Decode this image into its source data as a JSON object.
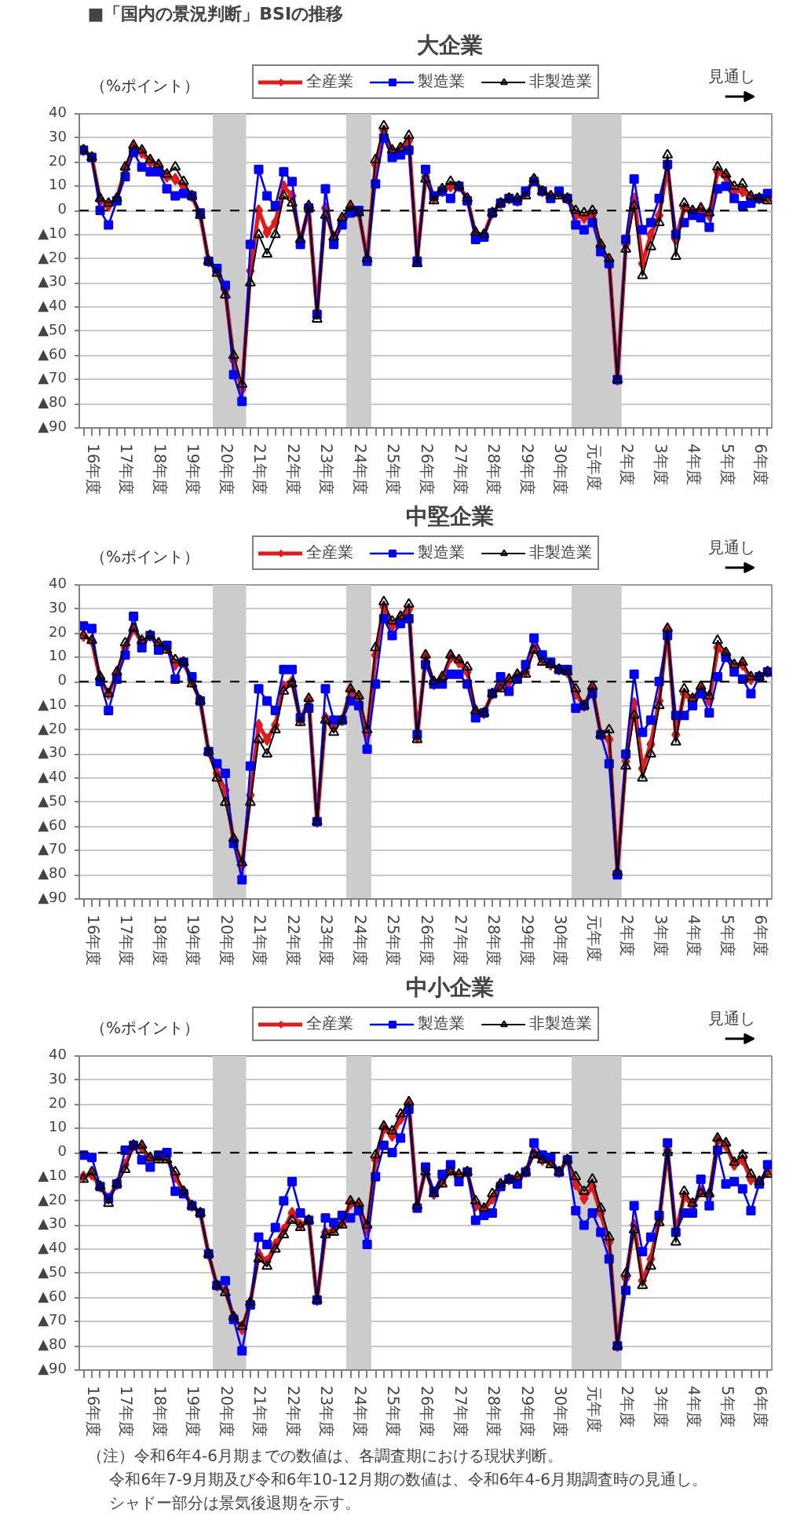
{
  "chart_data": [
    {
      "type": "line",
      "title": "■「国内の景況判断」BSIの推移",
      "subtitle": "大企業",
      "ylabel": "（%ポイント）",
      "categories": [
        null,
        "16年度",
        null,
        null,
        null,
        "17年度",
        null,
        null,
        null,
        "18年度",
        null,
        null,
        null,
        "19年度",
        null,
        null,
        null,
        "20年度",
        null,
        null,
        null,
        "21年度",
        null,
        null,
        null,
        "22年度",
        null,
        null,
        null,
        "23年度",
        null,
        null,
        null,
        "24年度",
        null,
        null,
        null,
        "25年度",
        null,
        null,
        null,
        "26年度",
        null,
        null,
        null,
        "27年度",
        null,
        null,
        null,
        "28年度",
        null,
        null,
        null,
        "29年度",
        null,
        null,
        null,
        "30年度",
        null,
        null,
        null,
        "元年度",
        null,
        null,
        null,
        "2年度",
        null,
        null,
        null,
        "3年度",
        null,
        null,
        null,
        "4年度",
        null,
        null,
        null,
        "5年度",
        null,
        null,
        null,
        "6年度",
        null
      ],
      "ylim": [
        -90,
        40
      ],
      "yticks": [
        40,
        30,
        20,
        10,
        0,
        {
          "value": -10,
          "label": "▲10"
        },
        {
          "value": -20,
          "label": "▲20"
        },
        {
          "value": -30,
          "label": "▲30"
        },
        {
          "value": -40,
          "label": "▲40"
        },
        {
          "value": -50,
          "label": "▲50"
        },
        {
          "value": -60,
          "label": "▲60"
        },
        {
          "value": -70,
          "label": "▲70"
        },
        {
          "value": -80,
          "label": "▲80"
        },
        {
          "value": -90,
          "label": "▲90"
        }
      ],
      "grid": "y",
      "legend": "top",
      "ref_lines": [
        {
          "axis": "y",
          "value": 0,
          "color": "#000000",
          "line_style": "dashed"
        }
      ],
      "annotations": [
        "見通し"
      ],
      "series": [
        {
          "name": "全産業",
          "color": "#e31a1c",
          "marker": "diamond",
          "values": [
            25,
            22,
            4,
            2,
            5,
            17,
            26,
            24,
            20,
            18,
            14,
            13,
            10,
            6,
            -2,
            -21,
            -25,
            -33,
            -62,
            -74,
            -25,
            0,
            -9,
            -5,
            10,
            6,
            -13,
            1,
            -42,
            1,
            -12,
            -4,
            1,
            -1,
            -20,
            19,
            33,
            24,
            25,
            29,
            -20,
            14,
            5,
            8,
            10,
            10,
            5,
            -10,
            -10,
            -1,
            3,
            5,
            4,
            7,
            13,
            8,
            6,
            7,
            5,
            -2,
            -3,
            -2,
            -15,
            -21,
            -70,
            -14,
            5,
            -22,
            -10,
            -2,
            18,
            -12,
            1,
            -1,
            0,
            -2,
            16,
            14,
            8,
            8,
            5,
            5,
            5
          ]
        },
        {
          "name": "製造業",
          "color": "#0000ff",
          "marker": "square",
          "values": [
            25,
            22,
            0,
            -6,
            4,
            14,
            24,
            18,
            16,
            16,
            9,
            6,
            7,
            6,
            -1,
            -21,
            -24,
            -31,
            -68,
            -79,
            -14,
            17,
            6,
            2,
            16,
            12,
            -14,
            1,
            -43,
            9,
            -14,
            -6,
            -1,
            0,
            -21,
            11,
            30,
            22,
            23,
            25,
            -21,
            17,
            6,
            8,
            5,
            10,
            4,
            -12,
            -11,
            -1,
            3,
            5,
            4,
            8,
            12,
            8,
            5,
            8,
            5,
            -6,
            -8,
            -5,
            -17,
            -22,
            -70,
            -12,
            13,
            -8,
            -5,
            5,
            19,
            -10,
            -5,
            -2,
            -3,
            -7,
            9,
            10,
            5,
            2,
            3,
            5,
            7
          ]
        },
        {
          "name": "非製造業",
          "color": "#000000",
          "marker": "triangle",
          "values": [
            25,
            22,
            5,
            3,
            5,
            18,
            27,
            25,
            21,
            19,
            15,
            18,
            12,
            6,
            -2,
            -21,
            -26,
            -35,
            -60,
            -72,
            -30,
            -10,
            -18,
            -10,
            6,
            3,
            -12,
            2,
            -45,
            -2,
            -11,
            -3,
            2,
            -1,
            -20,
            21,
            35,
            25,
            26,
            31,
            -22,
            13,
            4,
            9,
            12,
            10,
            5,
            -9,
            -10,
            -1,
            3,
            5,
            5,
            6,
            13,
            8,
            6,
            6,
            5,
            0,
            -1,
            0,
            -14,
            -20,
            -70,
            -16,
            2,
            -27,
            -15,
            -5,
            23,
            -19,
            3,
            0,
            1,
            -1,
            18,
            15,
            10,
            11,
            6,
            5,
            4
          ]
        }
      ]
    },
    {
      "type": "line",
      "subtitle": "中堅企業",
      "ylabel": "（%ポイント）",
      "categories": [
        null,
        "16年度",
        null,
        null,
        null,
        "17年度",
        null,
        null,
        null,
        "18年度",
        null,
        null,
        null,
        "19年度",
        null,
        null,
        null,
        "20年度",
        null,
        null,
        null,
        "21年度",
        null,
        null,
        null,
        "22年度",
        null,
        null,
        null,
        "23年度",
        null,
        null,
        null,
        "24年度",
        null,
        null,
        null,
        "25年度",
        null,
        null,
        null,
        "26年度",
        null,
        null,
        null,
        "27年度",
        null,
        null,
        null,
        "28年度",
        null,
        null,
        null,
        "29年度",
        null,
        null,
        null,
        "30年度",
        null,
        null,
        null,
        "元年度",
        null,
        null,
        null,
        "2年度",
        null,
        null,
        null,
        "3年度",
        null,
        null,
        null,
        "4年度",
        null,
        null,
        null,
        "5年度",
        null,
        null,
        null,
        "6年度",
        null
      ],
      "ylim": [
        -90,
        40
      ],
      "yticks": [
        40,
        30,
        20,
        10,
        0,
        {
          "value": -10,
          "label": "▲10"
        },
        {
          "value": -20,
          "label": "▲20"
        },
        {
          "value": -30,
          "label": "▲30"
        },
        {
          "value": -40,
          "label": "▲40"
        },
        {
          "value": -50,
          "label": "▲50"
        },
        {
          "value": -60,
          "label": "▲60"
        },
        {
          "value": -70,
          "label": "▲70"
        },
        {
          "value": -80,
          "label": "▲80"
        },
        {
          "value": -90,
          "label": "▲90"
        }
      ],
      "grid": "y",
      "legend": "top",
      "ref_lines": [
        {
          "axis": "y",
          "value": 0,
          "color": "#000000",
          "line_style": "dashed"
        }
      ],
      "annotations": [
        "見通し"
      ],
      "series": [
        {
          "name": "全産業",
          "color": "#e31a1c",
          "marker": "diamond",
          "values": [
            19,
            17,
            1,
            -5,
            3,
            14,
            22,
            16,
            19,
            15,
            14,
            7,
            8,
            0,
            -8,
            -29,
            -38,
            -45,
            -66,
            -76,
            -47,
            -18,
            -24,
            -18,
            -2,
            0,
            -16,
            -8,
            -58,
            -15,
            -19,
            -16,
            -4,
            -7,
            -22,
            11,
            31,
            23,
            26,
            30,
            -23,
            10,
            -1,
            1,
            10,
            8,
            4,
            -13,
            -13,
            -5,
            -2,
            0,
            2,
            4,
            14,
            9,
            7,
            5,
            4,
            -5,
            -10,
            -3,
            -22,
            -24,
            -79,
            -33,
            -9,
            -36,
            -26,
            -8,
            21,
            -22,
            -5,
            -8,
            -3,
            -8,
            14,
            11,
            6,
            7,
            1,
            2,
            4
          ]
        },
        {
          "name": "製造業",
          "color": "#0000ff",
          "marker": "square",
          "values": [
            23,
            22,
            0,
            -12,
            1,
            11,
            27,
            14,
            19,
            13,
            15,
            1,
            8,
            2,
            -8,
            -29,
            -34,
            -38,
            -67,
            -82,
            -35,
            -3,
            -8,
            -12,
            5,
            5,
            -15,
            -11,
            -58,
            -3,
            -16,
            -16,
            -8,
            -10,
            -28,
            -1,
            26,
            19,
            24,
            26,
            -22,
            7,
            -1,
            -1,
            3,
            3,
            -1,
            -15,
            -13,
            -5,
            2,
            -4,
            1,
            7,
            18,
            11,
            8,
            5,
            5,
            -11,
            -10,
            -5,
            -22,
            -34,
            -80,
            -30,
            3,
            -21,
            -16,
            0,
            19,
            -14,
            -14,
            -10,
            -5,
            -13,
            2,
            10,
            4,
            1,
            -5,
            2,
            4
          ]
        },
        {
          "name": "非製造業",
          "color": "#000000",
          "marker": "triangle",
          "values": [
            19,
            17,
            2,
            -5,
            4,
            16,
            22,
            17,
            19,
            16,
            13,
            9,
            8,
            -1,
            -8,
            -29,
            -40,
            -50,
            -65,
            -75,
            -50,
            -24,
            -30,
            -20,
            -4,
            -1,
            -17,
            -7,
            -58,
            -16,
            -21,
            -16,
            -3,
            -6,
            -20,
            14,
            33,
            25,
            27,
            32,
            -24,
            11,
            0,
            2,
            11,
            9,
            6,
            -12,
            -13,
            -5,
            -3,
            1,
            3,
            3,
            13,
            8,
            7,
            5,
            4,
            -3,
            -10,
            -2,
            -22,
            -20,
            -79,
            -35,
            -14,
            -40,
            -30,
            -10,
            22,
            -25,
            -3,
            -7,
            -2,
            -6,
            17,
            12,
            7,
            8,
            2,
            2,
            4
          ]
        }
      ]
    },
    {
      "type": "line",
      "subtitle": "中小企業",
      "ylabel": "（%ポイント）",
      "categories": [
        null,
        "16年度",
        null,
        null,
        null,
        "17年度",
        null,
        null,
        null,
        "18年度",
        null,
        null,
        null,
        "19年度",
        null,
        null,
        null,
        "20年度",
        null,
        null,
        null,
        "21年度",
        null,
        null,
        null,
        "22年度",
        null,
        null,
        null,
        "23年度",
        null,
        null,
        null,
        "24年度",
        null,
        null,
        null,
        "25年度",
        null,
        null,
        null,
        "26年度",
        null,
        null,
        null,
        "27年度",
        null,
        null,
        null,
        "28年度",
        null,
        null,
        null,
        "29年度",
        null,
        null,
        null,
        "30年度",
        null,
        null,
        null,
        "元年度",
        null,
        null,
        null,
        "2年度",
        null,
        null,
        null,
        "3年度",
        null,
        null,
        null,
        "4年度",
        null,
        null,
        null,
        "5年度",
        null,
        null,
        null,
        "6年度",
        null
      ],
      "ylim": [
        -90,
        40
      ],
      "yticks": [
        40,
        30,
        20,
        10,
        0,
        {
          "value": -10,
          "label": "▲10"
        },
        {
          "value": -20,
          "label": "▲20"
        },
        {
          "value": -30,
          "label": "▲30"
        },
        {
          "value": -40,
          "label": "▲40"
        },
        {
          "value": -50,
          "label": "▲50"
        },
        {
          "value": -60,
          "label": "▲60"
        },
        {
          "value": -70,
          "label": "▲70"
        },
        {
          "value": -80,
          "label": "▲80"
        },
        {
          "value": -90,
          "label": "▲90"
        }
      ],
      "grid": "y",
      "legend": "top",
      "ref_lines": [
        {
          "axis": "y",
          "value": 0,
          "color": "#000000",
          "line_style": "dashed"
        }
      ],
      "annotations": [
        "見通し",
        "（注）令和6年4-6月期までの数値は、各調査期における現状判断。",
        "令和6年7-9月期及び令和6年10-12月期の数値は、令和6年4-6月期調査時の見通し。",
        "シャドー部分は景気後退期を示す。"
      ],
      "series": [
        {
          "name": "全産業",
          "color": "#e31a1c",
          "marker": "diamond",
          "values": [
            -10,
            -9,
            -14,
            -19,
            -13,
            -5,
            3,
            2,
            -3,
            -2,
            -2,
            -10,
            -16,
            -22,
            -25,
            -42,
            -55,
            -57,
            -68,
            -73,
            -62,
            -42,
            -45,
            -38,
            -32,
            -25,
            -30,
            -28,
            -61,
            -33,
            -32,
            -29,
            -21,
            -22,
            -32,
            -3,
            10,
            7,
            14,
            20,
            -22,
            -7,
            -17,
            -12,
            -7,
            -10,
            -8,
            -22,
            -24,
            -19,
            -13,
            -11,
            -11,
            -8,
            0,
            -3,
            -4,
            -8,
            -3,
            -13,
            -19,
            -14,
            -25,
            -37,
            -80,
            -52,
            -30,
            -53,
            -44,
            -28,
            1,
            -33,
            -18,
            -22,
            -16,
            -18,
            5,
            3,
            -5,
            -3,
            -11,
            -12,
            -8
          ]
        },
        {
          "name": "製造業",
          "color": "#0000ff",
          "marker": "square",
          "values": [
            -1,
            -2,
            -14,
            -19,
            -13,
            1,
            3,
            -3,
            -6,
            -1,
            0,
            -16,
            -17,
            -22,
            -25,
            -42,
            -55,
            -53,
            -69,
            -82,
            -63,
            -35,
            -38,
            -31,
            -20,
            -12,
            -25,
            -28,
            -61,
            -27,
            -29,
            -26,
            -27,
            -24,
            -38,
            -10,
            3,
            0,
            6,
            18,
            -23,
            -6,
            -16,
            -9,
            -5,
            -12,
            -8,
            -28,
            -26,
            -25,
            -14,
            -11,
            -13,
            -8,
            4,
            -1,
            -2,
            -8,
            -3,
            -24,
            -30,
            -25,
            -33,
            -44,
            -80,
            -57,
            -22,
            -41,
            -35,
            -26,
            4,
            -33,
            -25,
            -25,
            -11,
            -22,
            1,
            -13,
            -12,
            -15,
            -24,
            -13,
            -5
          ]
        },
        {
          "name": "非製造業",
          "color": "#000000",
          "marker": "triangle",
          "values": [
            -11,
            -8,
            -14,
            -21,
            -13,
            -7,
            3,
            3,
            -2,
            -3,
            -3,
            -8,
            -16,
            -22,
            -25,
            -42,
            -55,
            -58,
            -68,
            -72,
            -62,
            -44,
            -47,
            -40,
            -34,
            -28,
            -31,
            -28,
            -61,
            -34,
            -33,
            -30,
            -20,
            -21,
            -30,
            -1,
            11,
            9,
            16,
            21,
            -22,
            -8,
            -17,
            -13,
            -8,
            -9,
            -8,
            -20,
            -23,
            -17,
            -13,
            -11,
            -10,
            -8,
            -1,
            -3,
            -5,
            -8,
            -3,
            -10,
            -16,
            -11,
            -23,
            -35,
            -80,
            -50,
            -32,
            -55,
            -47,
            -29,
            0,
            -37,
            -16,
            -21,
            -17,
            -17,
            6,
            4,
            -4,
            -1,
            -9,
            -12,
            -9
          ]
        }
      ]
    }
  ]
}
